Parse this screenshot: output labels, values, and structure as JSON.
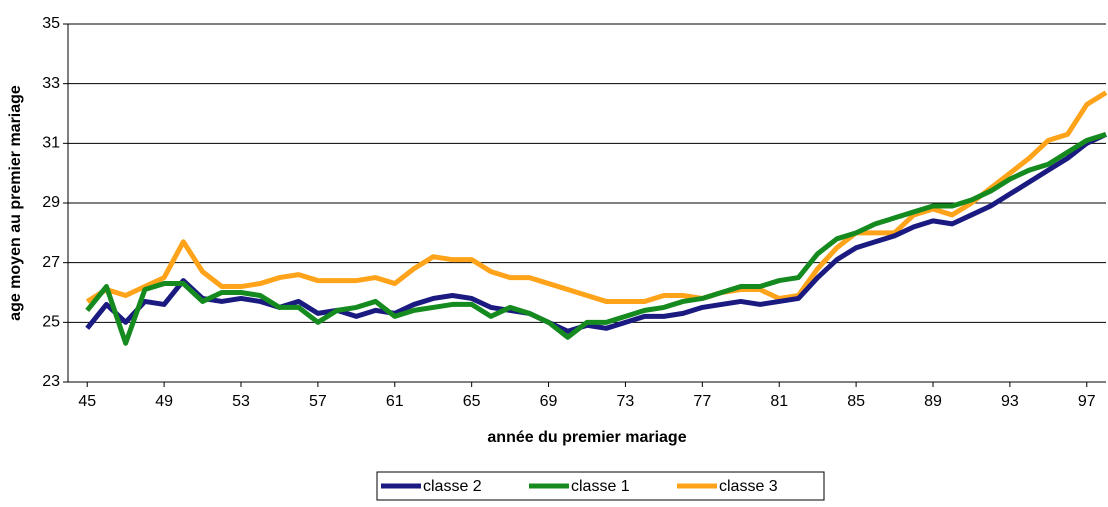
{
  "chart_data": {
    "type": "line",
    "x_label": "année du premier mariage",
    "y_label": "age moyen au premier mariage",
    "x": [
      45,
      46,
      47,
      48,
      49,
      50,
      51,
      52,
      53,
      54,
      55,
      56,
      57,
      58,
      59,
      60,
      61,
      62,
      63,
      64,
      65,
      66,
      67,
      68,
      69,
      70,
      71,
      72,
      73,
      74,
      75,
      76,
      77,
      78,
      79,
      80,
      81,
      82,
      83,
      84,
      85,
      86,
      87,
      88,
      89,
      90,
      91,
      92,
      93,
      94,
      95,
      96,
      97,
      98
    ],
    "series": [
      {
        "name": "classe 2",
        "color": "#1a1a80",
        "values": [
          24.8,
          25.6,
          25.0,
          25.7,
          25.6,
          26.4,
          25.8,
          25.7,
          25.8,
          25.7,
          25.5,
          25.7,
          25.3,
          25.4,
          25.2,
          25.4,
          25.3,
          25.6,
          25.8,
          25.9,
          25.8,
          25.5,
          25.4,
          25.3,
          25.0,
          24.7,
          24.9,
          24.8,
          25.0,
          25.2,
          25.2,
          25.3,
          25.5,
          25.6,
          25.7,
          25.6,
          25.7,
          25.8,
          26.5,
          27.1,
          27.5,
          27.7,
          27.9,
          28.2,
          28.4,
          28.3,
          28.6,
          28.9,
          29.3,
          29.7,
          30.1,
          30.5,
          31.0,
          31.3
        ]
      },
      {
        "name": "classe 1",
        "color": "#148a1f",
        "values": [
          25.4,
          26.2,
          24.3,
          26.1,
          26.3,
          26.3,
          25.7,
          26.0,
          26.0,
          25.9,
          25.5,
          25.5,
          25.0,
          25.4,
          25.5,
          25.7,
          25.2,
          25.4,
          25.5,
          25.6,
          25.6,
          25.2,
          25.5,
          25.3,
          25.0,
          24.5,
          25.0,
          25.0,
          25.2,
          25.4,
          25.5,
          25.7,
          25.8,
          26.0,
          26.2,
          26.2,
          26.4,
          26.5,
          27.3,
          27.8,
          28.0,
          28.3,
          28.5,
          28.7,
          28.9,
          28.9,
          29.1,
          29.4,
          29.8,
          30.1,
          30.3,
          30.7,
          31.1,
          31.3
        ]
      },
      {
        "name": "classe 3",
        "color": "#ffa31a",
        "values": [
          25.7,
          26.1,
          25.9,
          26.2,
          26.5,
          27.7,
          26.7,
          26.2,
          26.2,
          26.3,
          26.5,
          26.6,
          26.4,
          26.4,
          26.4,
          26.5,
          26.3,
          26.8,
          27.2,
          27.1,
          27.1,
          26.7,
          26.5,
          26.5,
          26.3,
          26.1,
          25.9,
          25.7,
          25.7,
          25.7,
          25.9,
          25.9,
          25.8,
          26.0,
          26.1,
          26.1,
          25.8,
          25.9,
          26.8,
          27.5,
          28.0,
          28.0,
          28.0,
          28.6,
          28.8,
          28.6,
          29.0,
          29.5,
          30.0,
          30.5,
          31.1,
          31.3,
          32.3,
          32.7
        ]
      }
    ],
    "xlim": [
      44,
      98
    ],
    "xticks": [
      45,
      49,
      53,
      57,
      61,
      65,
      69,
      73,
      77,
      81,
      85,
      89,
      93,
      97
    ],
    "ylim": [
      23,
      35
    ],
    "yticks": [
      23,
      25,
      27,
      29,
      31,
      33,
      35
    ],
    "grid": true,
    "legend": "bottom"
  }
}
